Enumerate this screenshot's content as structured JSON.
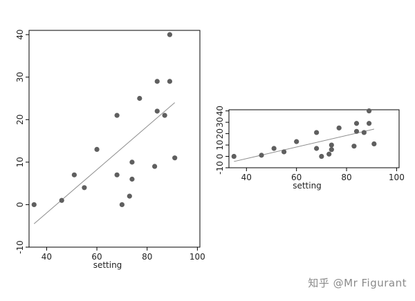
{
  "chart_data": [
    {
      "type": "scatter",
      "xlabel": "setting",
      "ylabel": "",
      "xlim": [
        33,
        101
      ],
      "ylim": [
        -10,
        41
      ],
      "xticks": [
        "40",
        "60",
        "80",
        "100"
      ],
      "yticks": [
        "-10",
        "0",
        "10",
        "20",
        "30",
        "40"
      ],
      "grid": false,
      "x": [
        35,
        46,
        51,
        55,
        60,
        68,
        68,
        70,
        73,
        74,
        74,
        77,
        83,
        84,
        84,
        87,
        89,
        89,
        91
      ],
      "y": [
        0,
        1,
        7,
        4,
        13,
        21,
        7,
        0,
        2,
        6,
        10,
        25,
        9,
        29,
        22,
        21,
        29,
        40,
        11
      ],
      "fit_line": {
        "x": [
          35,
          91
        ],
        "y": [
          -4.5,
          24
        ]
      },
      "point_color": "#5f5f5f",
      "line_color": "#8c8c8c"
    },
    {
      "type": "scatter",
      "xlabel": "setting",
      "ylabel": "",
      "xlim": [
        33,
        101
      ],
      "ylim": [
        -10,
        41
      ],
      "xticks": [
        "40",
        "60",
        "80",
        "100"
      ],
      "yticks": [
        "-10",
        "0",
        "10",
        "20",
        "30",
        "40"
      ],
      "grid": false,
      "x": [
        35,
        46,
        51,
        55,
        60,
        68,
        68,
        70,
        73,
        74,
        74,
        77,
        83,
        84,
        84,
        87,
        89,
        89,
        91
      ],
      "y": [
        0,
        1,
        7,
        4,
        13,
        21,
        7,
        0,
        2,
        6,
        10,
        25,
        9,
        29,
        22,
        21,
        29,
        40,
        11
      ],
      "fit_line": {
        "x": [
          35,
          91
        ],
        "y": [
          -4.5,
          24
        ]
      },
      "point_color": "#5f5f5f",
      "line_color": "#8c8c8c"
    }
  ],
  "watermark": "知乎 @Mr Figurant"
}
